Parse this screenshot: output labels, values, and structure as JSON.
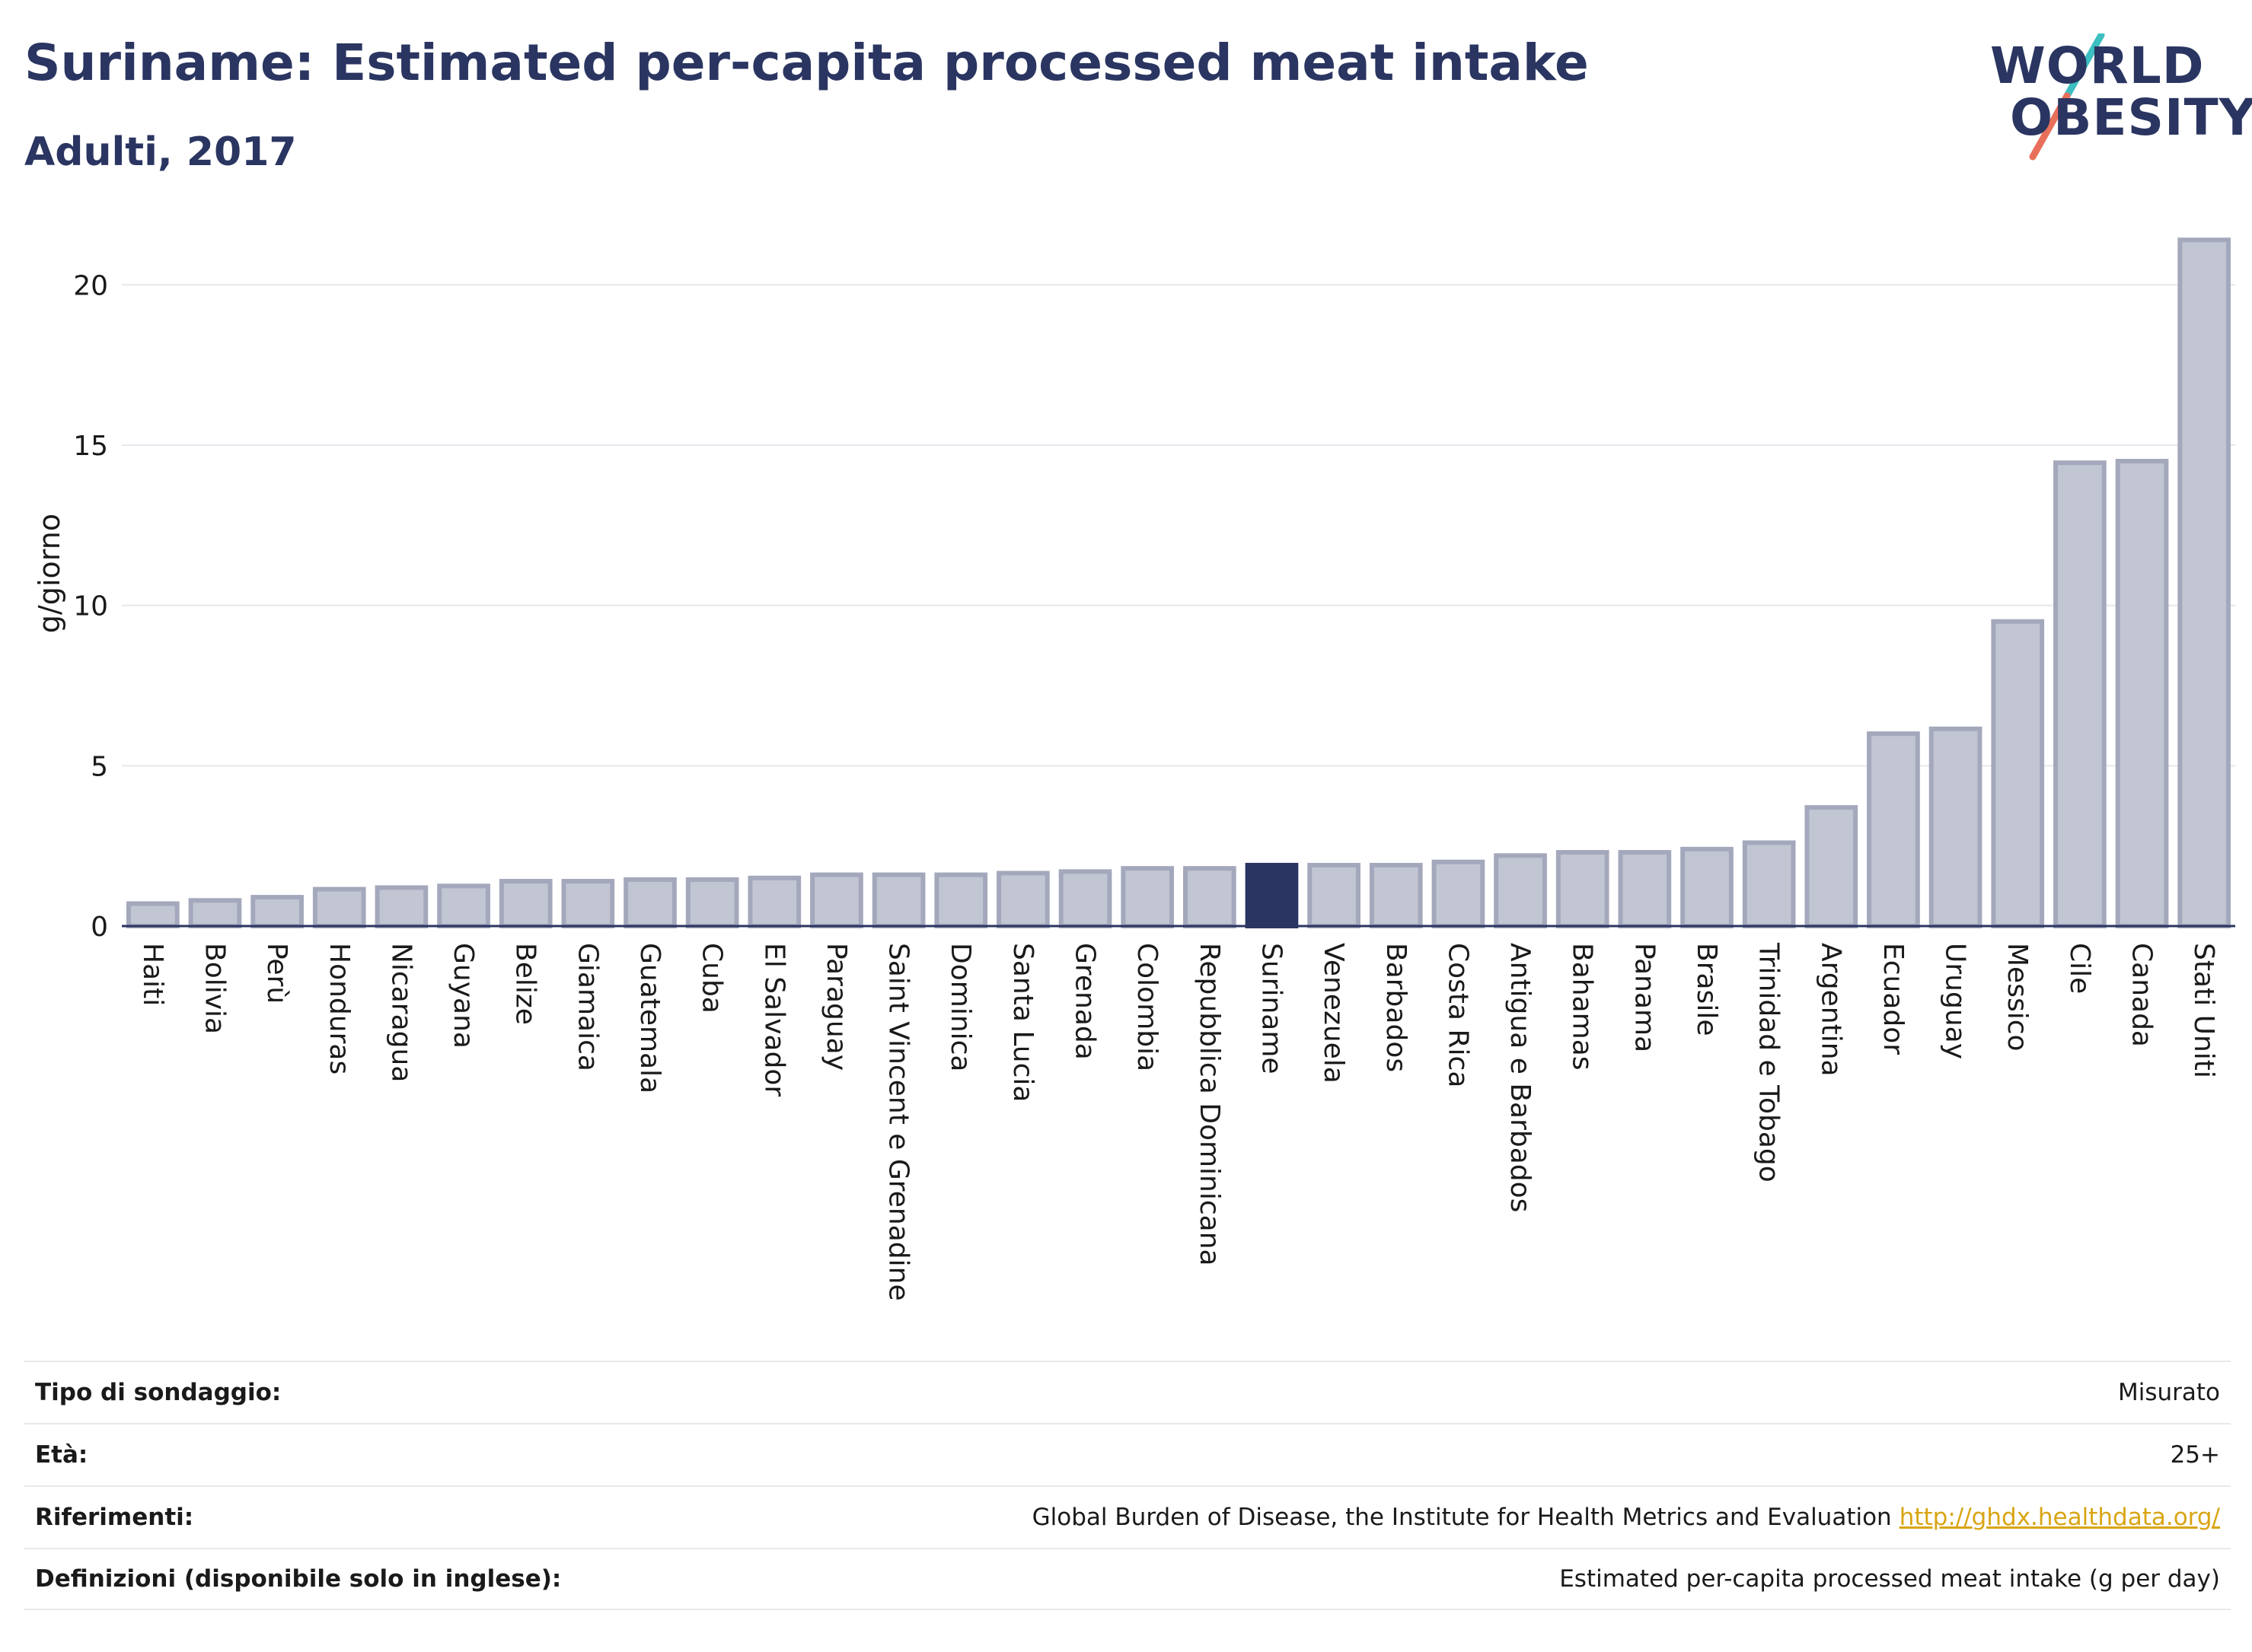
{
  "header": {
    "title": "Suriname: Estimated per-capita processed meat intake",
    "subtitle": "Adulti, 2017"
  },
  "logo": {
    "line1": "WORLD",
    "line2": "OBESITY",
    "accent_colors": [
      "#3bbfc1",
      "#e8705a"
    ]
  },
  "colors": {
    "bar_fill": "#c2c5d2",
    "bar_stroke": "#a4a8bc",
    "highlight": "#2a3561",
    "axis": "#2a3561",
    "grid": "#e6e7ec"
  },
  "chart_data": {
    "type": "bar",
    "title": "",
    "xlabel": "",
    "ylabel": "g/giorno",
    "ylim": [
      0,
      22
    ],
    "yticks": [
      0,
      5,
      10,
      15,
      20
    ],
    "grid": true,
    "highlight": "Suriname",
    "categories": [
      "Haiti",
      "Bolivia",
      "Perù",
      "Honduras",
      "Nicaragua",
      "Guyana",
      "Belize",
      "Giamaica",
      "Guatemala",
      "Cuba",
      "El Salvador",
      "Paraguay",
      "Saint Vincent e Grenadine",
      "Dominica",
      "Santa Lucia",
      "Grenada",
      "Colombia",
      "Repubblica Dominicana",
      "Suriname",
      "Venezuela",
      "Barbados",
      "Costa Rica",
      "Antigua e Barbados",
      "Bahamas",
      "Panama",
      "Brasile",
      "Trinidad e Tobago",
      "Argentina",
      "Ecuador",
      "Uruguay",
      "Messico",
      "Cile",
      "Canada",
      "Stati Uniti"
    ],
    "values": [
      0.7,
      0.8,
      0.9,
      1.15,
      1.2,
      1.25,
      1.4,
      1.4,
      1.45,
      1.45,
      1.5,
      1.6,
      1.6,
      1.6,
      1.65,
      1.7,
      1.8,
      1.8,
      1.9,
      1.9,
      1.9,
      2.0,
      2.2,
      2.3,
      2.3,
      2.4,
      2.6,
      3.7,
      6.0,
      6.15,
      9.5,
      14.45,
      14.5,
      21.4
    ]
  },
  "meta": [
    {
      "label": "Tipo di sondaggio:",
      "value": "Misurato",
      "link": ""
    },
    {
      "label": "Età:",
      "value": "25+",
      "link": ""
    },
    {
      "label": "Riferimenti:",
      "value": "Global Burden of Disease, the Institute for Health Metrics and Evaluation",
      "link": "http://ghdx.healthdata.org/"
    },
    {
      "label": "Definizioni (disponibile solo in inglese):",
      "value": "Estimated per-capita processed meat intake (g per day)",
      "link": ""
    }
  ]
}
